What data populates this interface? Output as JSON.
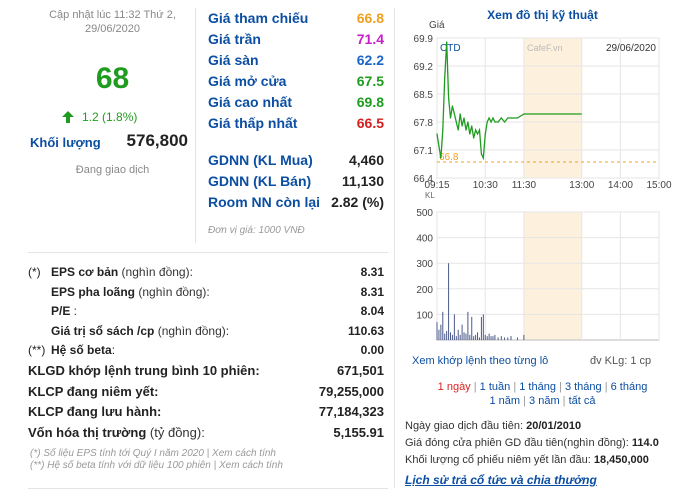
{
  "update": {
    "line1": "Cập nhật lúc 11:32 Thứ 2,",
    "line2": "29/06/2020"
  },
  "price": "68",
  "change": "1.2 (1.8%)",
  "volume": {
    "label": "Khối lượng",
    "value": "576,800"
  },
  "status": "Đang giao dịch",
  "price_table": [
    {
      "label": "Giá tham chiếu",
      "value": "66.8",
      "color": "#f0a020"
    },
    {
      "label": "Giá trần",
      "value": "71.4",
      "color": "#c71fc7"
    },
    {
      "label": "Giá sàn",
      "value": "62.2",
      "color": "#1a66c8"
    },
    {
      "label": "Giá mở cửa",
      "value": "67.5",
      "color": "#1f9c1f"
    },
    {
      "label": "Giá cao nhất",
      "value": "69.8",
      "color": "#1f9c1f"
    },
    {
      "label": "Giá thấp nhất",
      "value": "66.5",
      "color": "#d22020"
    }
  ],
  "foreign_table": [
    {
      "label": "GDNN (KL Mua)",
      "value": "4,460"
    },
    {
      "label": "GDNN (KL Bán)",
      "value": "11,130"
    },
    {
      "label": "Room NN còn lại",
      "value": "2.82 (%)"
    }
  ],
  "unit_note": "Đơn vị giá: 1000 VNĐ",
  "stats": [
    {
      "prefix": "(*)",
      "label": "EPS cơ bản",
      "suffix": " (nghìn đồng):",
      "value": "8.31"
    },
    {
      "prefix": "",
      "label": "EPS pha loãng",
      "suffix": " (nghìn đồng):",
      "value": "8.31"
    },
    {
      "prefix": "",
      "label": "P/E",
      "suffix": " :",
      "value": "8.04"
    },
    {
      "prefix": "",
      "label": "Giá trị sổ sách /cp",
      "suffix": " (nghìn đồng):",
      "value": "110.63"
    },
    {
      "prefix": "(**)",
      "label": "Hệ số beta",
      "suffix": ":",
      "value": "0.00"
    }
  ],
  "stats_bold": [
    {
      "label": "KLGD khớp lệnh trung bình 10 phiên:",
      "value": "671,501"
    },
    {
      "label": "KLCP đang niêm yết:",
      "value": "79,255,000"
    },
    {
      "label": "KLCP đang lưu hành:",
      "value": "77,184,323"
    },
    {
      "label": "Vốn hóa thị trường",
      "suffix": " (tỷ đồng):",
      "value": "5,155.91"
    }
  ],
  "notes": [
    "(*) Số liệu EPS tính tới Quý I năm 2020 | Xem cách tính",
    "(**) Hệ số beta tính với dữ liệu 100 phiên | Xem cách tính"
  ],
  "chart": {
    "title": "Xem đồ thị kỹ thuật",
    "ylabel": "Giá",
    "symbol": "CTD",
    "watermark": "CafeF.vn",
    "date": "29/06/2020",
    "ref_label": "66.8",
    "bottom_axis_label": "KL"
  },
  "chart_data": [
    {
      "type": "line",
      "ylabel": "Giá",
      "x_ticks": [
        "09:15",
        "10:30",
        "11:30",
        "13:00",
        "14:00",
        "15:00"
      ],
      "y_ticks": [
        "69.9",
        "69.2",
        "68.5",
        "67.8",
        "67.1",
        "66.4"
      ],
      "ylim": [
        66.4,
        69.9
      ],
      "reference": 66.8,
      "series": [
        {
          "x": [
            "09:15",
            "09:18",
            "09:21",
            "09:24",
            "09:27",
            "09:30",
            "09:33",
            "09:36",
            "09:39",
            "09:42",
            "09:45",
            "09:48",
            "09:51",
            "09:54",
            "09:57",
            "10:00",
            "10:03",
            "10:06",
            "10:09",
            "10:12",
            "10:15",
            "10:18",
            "10:21",
            "10:24",
            "10:27",
            "10:30",
            "10:33",
            "10:36",
            "10:39",
            "10:42",
            "10:45",
            "10:50",
            "10:55",
            "11:00",
            "11:05",
            "11:10",
            "11:20",
            "11:30",
            "11:32"
          ],
          "values": [
            67.5,
            67.2,
            66.9,
            67.6,
            68.9,
            69.8,
            68.4,
            67.9,
            68.2,
            68.0,
            67.8,
            67.6,
            68.0,
            67.7,
            67.9,
            67.6,
            67.8,
            67.5,
            67.7,
            67.4,
            67.6,
            67.5,
            67.6,
            67.0,
            66.9,
            67.5,
            67.8,
            67.9,
            67.8,
            67.9,
            67.8,
            67.8,
            67.9,
            67.8,
            67.9,
            67.9,
            67.9,
            68.0,
            68.0
          ]
        }
      ]
    },
    {
      "type": "bar",
      "y_ticks": [
        "500",
        "400",
        "300",
        "200",
        "100"
      ],
      "ylim": [
        0,
        500
      ],
      "x": [
        "09:15",
        "09:18",
        "09:21",
        "09:24",
        "09:27",
        "09:30",
        "09:33",
        "09:36",
        "09:39",
        "09:42",
        "09:45",
        "09:48",
        "09:51",
        "09:54",
        "09:57",
        "10:00",
        "10:03",
        "10:06",
        "10:09",
        "10:12",
        "10:15",
        "10:18",
        "10:21",
        "10:24",
        "10:27",
        "10:30",
        "10:33",
        "10:36",
        "10:39",
        "10:42",
        "10:45",
        "10:50",
        "10:55",
        "11:00",
        "11:05",
        "11:10",
        "11:20",
        "11:30"
      ],
      "values": [
        70,
        40,
        60,
        110,
        25,
        35,
        300,
        30,
        20,
        100,
        15,
        40,
        20,
        60,
        30,
        25,
        110,
        20,
        90,
        15,
        20,
        30,
        10,
        90,
        100,
        20,
        15,
        25,
        15,
        15,
        20,
        10,
        15,
        10,
        10,
        15,
        10,
        20
      ]
    }
  ],
  "links": {
    "tick_log": "Xem khớp lệnh theo từng lô",
    "vol_unit": "đv KLg: 1 cp",
    "ranges1": [
      "1 ngày",
      "1 tuần",
      "1 tháng",
      "3 tháng",
      "6 tháng"
    ],
    "ranges2": [
      "1 năm",
      "3 năm",
      "tất cả"
    ]
  },
  "info": [
    {
      "label": "Ngày giao dịch đầu tiên: ",
      "value": "20/01/2010"
    },
    {
      "label": "Giá đóng cửa phiên GD đầu tiên(nghìn đồng): ",
      "value": "114.0"
    },
    {
      "label": "Khối lượng cổ phiếu niêm yết lần đầu: ",
      "value": "18,450,000"
    }
  ],
  "history_link": "Lịch sử trả cổ tức và chia thưởng",
  "colors": {
    "up": "#1f9c1f",
    "link": "#0b4ea2",
    "ref": "#f0a020",
    "selected": "#dd2222"
  }
}
